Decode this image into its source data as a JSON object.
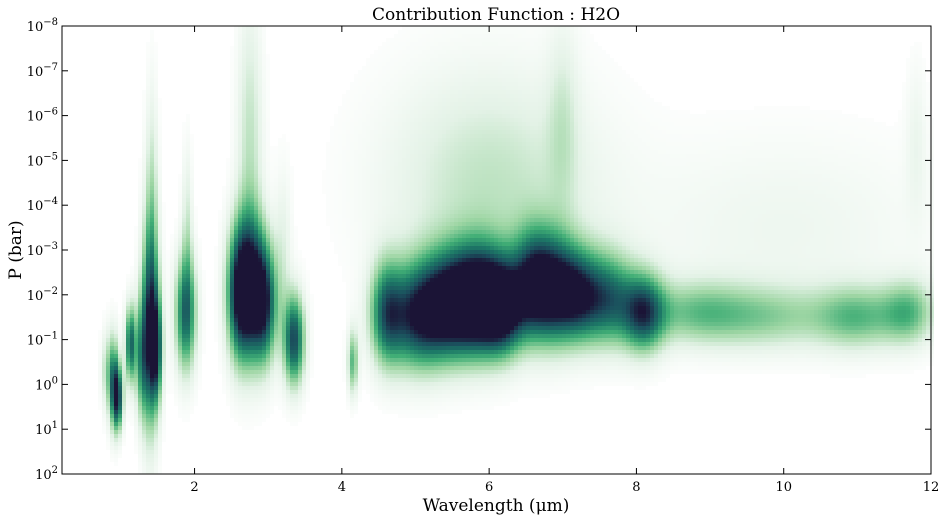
{
  "chart_data": {
    "type": "heatmap",
    "title": "Contribution Function : H2O",
    "xlabel": "Wavelength (μm)",
    "ylabel": "P (bar)",
    "xlim": [
      0.2,
      12.0
    ],
    "ylim": [
      100,
      1e-08
    ],
    "y_scale": "log",
    "grid": false,
    "x_ticks": [
      {
        "value": 2,
        "label": "2"
      },
      {
        "value": 4,
        "label": "4"
      },
      {
        "value": 6,
        "label": "6"
      },
      {
        "value": 8,
        "label": "8"
      },
      {
        "value": 10,
        "label": "10"
      },
      {
        "value": 12,
        "label": "12"
      }
    ],
    "y_ticks": [
      {
        "exp": -8,
        "base": "10",
        "sup": "−8"
      },
      {
        "exp": -7,
        "base": "10",
        "sup": "−7"
      },
      {
        "exp": -6,
        "base": "10",
        "sup": "−6"
      },
      {
        "exp": -5,
        "base": "10",
        "sup": "−5"
      },
      {
        "exp": -4,
        "base": "10",
        "sup": "−4"
      },
      {
        "exp": -3,
        "base": "10",
        "sup": "−3"
      },
      {
        "exp": -2,
        "base": "10",
        "sup": "−2"
      },
      {
        "exp": -1,
        "base": "10",
        "sup": "−1"
      },
      {
        "exp": 0,
        "base": "10",
        "sup": "0"
      },
      {
        "exp": 1,
        "base": "10",
        "sup": "1"
      },
      {
        "exp": 2,
        "base": "10",
        "sup": "2"
      }
    ],
    "colormap": [
      "#ffffff",
      "#e3f2e6",
      "#9ed6a4",
      "#41ae76",
      "#1d7a67",
      "#1b4f5d",
      "#1b1436"
    ],
    "features": [
      {
        "wl": 0.8,
        "logp": -0.3,
        "wl_width": 0.05,
        "logp_width": 0.6,
        "intensity": 0.25
      },
      {
        "wl": 0.9,
        "logp": -0.1,
        "wl_width": 0.05,
        "logp_width": 0.7,
        "intensity": 0.6
      },
      {
        "wl": 0.96,
        "logp": 0.3,
        "wl_width": 0.05,
        "logp_width": 0.5,
        "intensity": 0.8
      },
      {
        "wl": 1.13,
        "logp": -0.9,
        "wl_width": 0.05,
        "logp_width": 0.6,
        "intensity": 0.75
      },
      {
        "wl": 1.28,
        "logp": -0.6,
        "wl_width": 0.06,
        "logp_width": 0.9,
        "intensity": 0.5
      },
      {
        "wl": 1.4,
        "logp": -1.4,
        "wl_width": 0.08,
        "logp_width": 1.6,
        "intensity": 0.9
      },
      {
        "wl": 1.48,
        "logp": -0.8,
        "wl_width": 0.06,
        "logp_width": 0.8,
        "intensity": 0.7
      },
      {
        "wl": 1.42,
        "logp": -4.5,
        "wl_width": 0.06,
        "logp_width": 1.6,
        "intensity": 0.2
      },
      {
        "wl": 1.88,
        "logp": -1.6,
        "wl_width": 0.1,
        "logp_width": 0.9,
        "intensity": 0.75
      },
      {
        "wl": 1.9,
        "logp": -3.5,
        "wl_width": 0.05,
        "logp_width": 1.2,
        "intensity": 0.2
      },
      {
        "wl": 2.6,
        "logp": -2.0,
        "wl_width": 0.12,
        "logp_width": 1.0,
        "intensity": 0.7
      },
      {
        "wl": 2.75,
        "logp": -2.2,
        "wl_width": 0.15,
        "logp_width": 1.1,
        "intensity": 0.9
      },
      {
        "wl": 2.95,
        "logp": -1.8,
        "wl_width": 0.12,
        "logp_width": 0.9,
        "intensity": 0.8
      },
      {
        "wl": 2.75,
        "logp": -5.5,
        "wl_width": 0.12,
        "logp_width": 2.0,
        "intensity": 0.25
      },
      {
        "wl": 3.35,
        "logp": -1.0,
        "wl_width": 0.1,
        "logp_width": 0.7,
        "intensity": 0.85
      },
      {
        "wl": 3.2,
        "logp": -3.0,
        "wl_width": 0.08,
        "logp_width": 1.2,
        "intensity": 0.15
      },
      {
        "wl": 4.15,
        "logp": -0.5,
        "wl_width": 0.05,
        "logp_width": 0.5,
        "intensity": 0.45
      },
      {
        "wl": 4.6,
        "logp": -1.6,
        "wl_width": 0.15,
        "logp_width": 0.8,
        "intensity": 0.55
      },
      {
        "wl": 5.0,
        "logp": -1.5,
        "wl_width": 0.3,
        "logp_width": 0.8,
        "intensity": 0.8
      },
      {
        "wl": 5.5,
        "logp": -1.8,
        "wl_width": 0.3,
        "logp_width": 0.8,
        "intensity": 1.0
      },
      {
        "wl": 5.9,
        "logp": -1.9,
        "wl_width": 0.25,
        "logp_width": 0.8,
        "intensity": 0.95
      },
      {
        "wl": 6.2,
        "logp": -1.7,
        "wl_width": 0.2,
        "logp_width": 0.7,
        "intensity": 0.85
      },
      {
        "wl": 6.6,
        "logp": -2.2,
        "wl_width": 0.2,
        "logp_width": 0.8,
        "intensity": 0.9
      },
      {
        "wl": 6.9,
        "logp": -2.1,
        "wl_width": 0.2,
        "logp_width": 0.8,
        "intensity": 0.75
      },
      {
        "wl": 7.2,
        "logp": -2.0,
        "wl_width": 0.2,
        "logp_width": 0.7,
        "intensity": 0.7
      },
      {
        "wl": 7.6,
        "logp": -1.9,
        "wl_width": 0.25,
        "logp_width": 0.7,
        "intensity": 0.7
      },
      {
        "wl": 8.1,
        "logp": -1.6,
        "wl_width": 0.2,
        "logp_width": 0.6,
        "intensity": 0.75
      },
      {
        "wl": 6.0,
        "logp": -4.5,
        "wl_width": 1.0,
        "logp_width": 1.8,
        "intensity": 0.25
      },
      {
        "wl": 7.0,
        "logp": -6.0,
        "wl_width": 0.15,
        "logp_width": 1.5,
        "intensity": 0.15
      },
      {
        "wl": 8.8,
        "logp": -1.6,
        "wl_width": 0.5,
        "logp_width": 0.5,
        "intensity": 0.35
      },
      {
        "wl": 9.8,
        "logp": -1.5,
        "wl_width": 0.6,
        "logp_width": 0.5,
        "intensity": 0.3
      },
      {
        "wl": 11.0,
        "logp": -1.5,
        "wl_width": 0.4,
        "logp_width": 0.5,
        "intensity": 0.4
      },
      {
        "wl": 11.7,
        "logp": -1.6,
        "wl_width": 0.25,
        "logp_width": 0.5,
        "intensity": 0.4
      },
      {
        "wl": 10.0,
        "logp": -3.5,
        "wl_width": 1.5,
        "logp_width": 1.5,
        "intensity": 0.1
      },
      {
        "wl": 11.8,
        "logp": -5.5,
        "wl_width": 0.1,
        "logp_width": 1.2,
        "intensity": 0.1
      }
    ]
  }
}
